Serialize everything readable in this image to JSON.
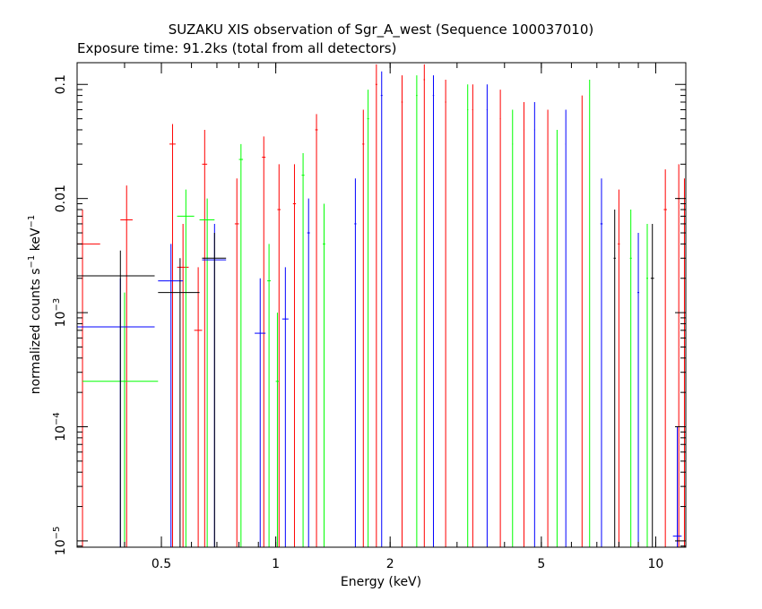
{
  "chart_data": {
    "type": "scatter",
    "title": "SUZAKU XIS observation of Sgr_A_west (Sequence 100037010)",
    "subtitle": "Exposure time: 91.2ks (total from all detectors)",
    "xlabel": "Energy (keV)",
    "ylabel_parts": {
      "main": "normalized counts s",
      "exp1": "−1",
      "mid": " keV",
      "exp2": "−1"
    },
    "x_scale": "log",
    "y_scale": "log",
    "xlim": [
      0.3,
      12.0
    ],
    "ylim": [
      8.8e-06,
      0.155
    ],
    "x_ticks": [
      {
        "value": 0.5,
        "label": "0.5"
      },
      {
        "value": 1,
        "label": "1"
      },
      {
        "value": 2,
        "label": "2"
      },
      {
        "value": 5,
        "label": "5"
      },
      {
        "value": 10,
        "label": "10"
      }
    ],
    "y_ticks": [
      {
        "value": 0.1,
        "label": "0.1",
        "mantissa": "",
        "exp": ""
      },
      {
        "value": 0.01,
        "label": "0.01",
        "mantissa": "",
        "exp": ""
      },
      {
        "value": 0.001,
        "label": "",
        "mantissa": "10",
        "exp": "−3"
      },
      {
        "value": 0.0001,
        "label": "",
        "mantissa": "10",
        "exp": "−4"
      },
      {
        "value": 1e-05,
        "label": "",
        "mantissa": "10",
        "exp": "−5"
      }
    ],
    "grid": false,
    "legend": "none",
    "series": [
      {
        "color": "#ff0000",
        "points": [
          {
            "x": 0.31,
            "xlo": 0.3,
            "xhi": 0.345,
            "y": 0.004,
            "ylo": 8.8e-06,
            "yhi": 0.008
          },
          {
            "x": 0.405,
            "xlo": 0.39,
            "xhi": 0.42,
            "y": 0.0065,
            "ylo": 8.8e-06,
            "yhi": 0.013
          },
          {
            "x": 0.535,
            "xlo": 0.525,
            "xhi": 0.545,
            "y": 0.03,
            "ylo": 8.8e-06,
            "yhi": 0.045
          },
          {
            "x": 0.57,
            "xlo": 0.55,
            "xhi": 0.59,
            "y": 0.0025,
            "ylo": 8.8e-06,
            "yhi": 0.006
          },
          {
            "x": 0.625,
            "xlo": 0.61,
            "xhi": 0.64,
            "y": 0.0007,
            "ylo": 8.8e-06,
            "yhi": 0.0025
          },
          {
            "x": 0.65,
            "xlo": 0.64,
            "xhi": 0.66,
            "y": 0.02,
            "ylo": 8.8e-06,
            "yhi": 0.04
          },
          {
            "x": 0.79,
            "xlo": 0.78,
            "xhi": 0.8,
            "y": 0.006,
            "ylo": 8.8e-06,
            "yhi": 0.015
          },
          {
            "x": 0.93,
            "xlo": 0.92,
            "xhi": 0.94,
            "y": 0.023,
            "ylo": 8.8e-06,
            "yhi": 0.035
          },
          {
            "x": 1.02,
            "xlo": 1.01,
            "xhi": 1.03,
            "y": 0.008,
            "ylo": 8.8e-06,
            "yhi": 0.02
          },
          {
            "x": 1.12,
            "xlo": 1.11,
            "xhi": 1.13,
            "y": 0.009,
            "ylo": 8.8e-06,
            "yhi": 0.02
          },
          {
            "x": 1.28,
            "xlo": 1.27,
            "xhi": 1.29,
            "y": 0.04,
            "ylo": 8.8e-06,
            "yhi": 0.055
          },
          {
            "x": 1.7,
            "xlo": 1.69,
            "xhi": 1.71,
            "y": 0.03,
            "ylo": 8.8e-06,
            "yhi": 0.06
          },
          {
            "x": 1.84,
            "xlo": 1.83,
            "xhi": 1.85,
            "y": 0.1,
            "ylo": 8.8e-06,
            "yhi": 0.15
          },
          {
            "x": 2.15,
            "xlo": 2.14,
            "xhi": 2.16,
            "y": 0.07,
            "ylo": 8.8e-06,
            "yhi": 0.12
          },
          {
            "x": 2.46,
            "xlo": 2.45,
            "xhi": 2.47,
            "y": 0.11,
            "ylo": 8.8e-06,
            "yhi": 0.15
          },
          {
            "x": 2.8,
            "xlo": 2.79,
            "xhi": 2.81,
            "y": 0.07,
            "ylo": 8.8e-06,
            "yhi": 0.11
          },
          {
            "x": 3.3,
            "xlo": 3.29,
            "xhi": 3.31,
            "y": 0.06,
            "ylo": 8.8e-06,
            "yhi": 0.1
          },
          {
            "x": 3.9,
            "xlo": 3.89,
            "xhi": 3.91,
            "y": 0.05,
            "ylo": 8.8e-06,
            "yhi": 0.09
          },
          {
            "x": 4.5,
            "xlo": 4.49,
            "xhi": 4.51,
            "y": 0.04,
            "ylo": 8.8e-06,
            "yhi": 0.07
          },
          {
            "x": 5.2,
            "xlo": 5.19,
            "xhi": 5.21,
            "y": 0.03,
            "ylo": 8.8e-06,
            "yhi": 0.06
          },
          {
            "x": 6.4,
            "xlo": 6.39,
            "xhi": 6.41,
            "y": 0.04,
            "ylo": 8.8e-06,
            "yhi": 0.08
          },
          {
            "x": 8.0,
            "xlo": 7.95,
            "xhi": 8.05,
            "y": 0.004,
            "ylo": 8.8e-06,
            "yhi": 0.012
          },
          {
            "x": 10.6,
            "xlo": 10.5,
            "xhi": 10.7,
            "y": 0.008,
            "ylo": 8.8e-06,
            "yhi": 0.018
          },
          {
            "x": 11.5,
            "xlo": 11.4,
            "xhi": 11.6,
            "y": 0.01,
            "ylo": 8.8e-06,
            "yhi": 0.02
          },
          {
            "x": 11.9,
            "xlo": 11.8,
            "xhi": 12.0,
            "y": 0.006,
            "ylo": 8.8e-06,
            "yhi": 0.015
          }
        ]
      },
      {
        "color": "#00ff00",
        "points": [
          {
            "x": 0.4,
            "xlo": 0.31,
            "xhi": 0.49,
            "y": 0.00025,
            "ylo": 8.8e-06,
            "yhi": 0.0015
          },
          {
            "x": 0.58,
            "xlo": 0.55,
            "xhi": 0.61,
            "y": 0.007,
            "ylo": 8.8e-06,
            "yhi": 0.012
          },
          {
            "x": 0.66,
            "xlo": 0.63,
            "xhi": 0.69,
            "y": 0.0065,
            "ylo": 8.8e-06,
            "yhi": 0.01
          },
          {
            "x": 0.81,
            "xlo": 0.8,
            "xhi": 0.82,
            "y": 0.022,
            "ylo": 8.8e-06,
            "yhi": 0.03
          },
          {
            "x": 0.96,
            "xlo": 0.95,
            "xhi": 0.97,
            "y": 0.0019,
            "ylo": 8.8e-06,
            "yhi": 0.004
          },
          {
            "x": 1.01,
            "xlo": 1.0,
            "xhi": 1.02,
            "y": 0.00025,
            "ylo": 8.8e-06,
            "yhi": 0.001
          },
          {
            "x": 1.18,
            "xlo": 1.17,
            "xhi": 1.19,
            "y": 0.016,
            "ylo": 8.8e-06,
            "yhi": 0.025
          },
          {
            "x": 1.34,
            "xlo": 1.33,
            "xhi": 1.35,
            "y": 0.004,
            "ylo": 8.8e-06,
            "yhi": 0.009
          },
          {
            "x": 1.75,
            "xlo": 1.74,
            "xhi": 1.76,
            "y": 0.05,
            "ylo": 8.8e-06,
            "yhi": 0.09
          },
          {
            "x": 2.35,
            "xlo": 2.34,
            "xhi": 2.36,
            "y": 0.08,
            "ylo": 8.8e-06,
            "yhi": 0.12
          },
          {
            "x": 3.2,
            "xlo": 3.19,
            "xhi": 3.21,
            "y": 0.06,
            "ylo": 8.8e-06,
            "yhi": 0.1
          },
          {
            "x": 4.2,
            "xlo": 4.19,
            "xhi": 4.21,
            "y": 0.03,
            "ylo": 8.8e-06,
            "yhi": 0.06
          },
          {
            "x": 5.5,
            "xlo": 5.49,
            "xhi": 5.51,
            "y": 0.02,
            "ylo": 8.8e-06,
            "yhi": 0.04
          },
          {
            "x": 6.7,
            "xlo": 6.69,
            "xhi": 6.71,
            "y": 0.08,
            "ylo": 8.8e-06,
            "yhi": 0.11
          },
          {
            "x": 8.6,
            "xlo": 8.55,
            "xhi": 8.65,
            "y": 0.003,
            "ylo": 8.8e-06,
            "yhi": 0.008
          },
          {
            "x": 9.5,
            "xlo": 9.45,
            "xhi": 9.55,
            "y": 0.002,
            "ylo": 8.8e-06,
            "yhi": 0.006
          }
        ]
      },
      {
        "color": "#0000ff",
        "points": [
          {
            "x": 0.39,
            "xlo": 0.3,
            "xhi": 0.48,
            "y": 0.00075,
            "ylo": 8.8e-06,
            "yhi": 0.002
          },
          {
            "x": 0.53,
            "xlo": 0.49,
            "xhi": 0.57,
            "y": 0.0019,
            "ylo": 8.8e-06,
            "yhi": 0.004
          },
          {
            "x": 0.69,
            "xlo": 0.64,
            "xhi": 0.74,
            "y": 0.0029,
            "ylo": 8.8e-06,
            "yhi": 0.006
          },
          {
            "x": 0.91,
            "xlo": 0.88,
            "xhi": 0.94,
            "y": 0.00066,
            "ylo": 8.8e-06,
            "yhi": 0.002
          },
          {
            "x": 1.06,
            "xlo": 1.04,
            "xhi": 1.08,
            "y": 0.00088,
            "ylo": 8.8e-06,
            "yhi": 0.0025
          },
          {
            "x": 1.22,
            "xlo": 1.21,
            "xhi": 1.23,
            "y": 0.005,
            "ylo": 8.8e-06,
            "yhi": 0.01
          },
          {
            "x": 1.62,
            "xlo": 1.61,
            "xhi": 1.63,
            "y": 0.006,
            "ylo": 8.8e-06,
            "yhi": 0.015
          },
          {
            "x": 1.9,
            "xlo": 1.89,
            "xhi": 1.91,
            "y": 0.08,
            "ylo": 8.8e-06,
            "yhi": 0.13
          },
          {
            "x": 2.6,
            "xlo": 2.59,
            "xhi": 2.61,
            "y": 0.08,
            "ylo": 8.8e-06,
            "yhi": 0.12
          },
          {
            "x": 3.6,
            "xlo": 3.59,
            "xhi": 3.61,
            "y": 0.06,
            "ylo": 8.8e-06,
            "yhi": 0.1
          },
          {
            "x": 4.8,
            "xlo": 4.79,
            "xhi": 4.81,
            "y": 0.04,
            "ylo": 8.8e-06,
            "yhi": 0.07
          },
          {
            "x": 5.8,
            "xlo": 5.79,
            "xhi": 5.81,
            "y": 0.03,
            "ylo": 8.8e-06,
            "yhi": 0.06
          },
          {
            "x": 7.2,
            "xlo": 7.15,
            "xhi": 7.25,
            "y": 0.006,
            "ylo": 8.8e-06,
            "yhi": 0.015
          },
          {
            "x": 9.0,
            "xlo": 8.95,
            "xhi": 9.05,
            "y": 0.0015,
            "ylo": 8.8e-06,
            "yhi": 0.005
          },
          {
            "x": 11.4,
            "xlo": 11.1,
            "xhi": 11.7,
            "y": 1.1e-05,
            "ylo": 8.8e-06,
            "yhi": 0.0001
          }
        ]
      },
      {
        "color": "#000000",
        "points": [
          {
            "x": 0.39,
            "xlo": 0.3,
            "xhi": 0.48,
            "y": 0.0021,
            "ylo": 8.8e-06,
            "yhi": 0.0035
          },
          {
            "x": 0.56,
            "xlo": 0.49,
            "xhi": 0.63,
            "y": 0.0015,
            "ylo": 8.8e-06,
            "yhi": 0.003
          },
          {
            "x": 0.69,
            "xlo": 0.64,
            "xhi": 0.74,
            "y": 0.003,
            "ylo": 8.8e-06,
            "yhi": 0.005
          },
          {
            "x": 7.8,
            "xlo": 7.75,
            "xhi": 7.85,
            "y": 0.003,
            "ylo": 8.8e-06,
            "yhi": 0.008
          },
          {
            "x": 9.8,
            "xlo": 9.7,
            "xhi": 9.9,
            "y": 0.002,
            "ylo": 8.8e-06,
            "yhi": 0.006
          }
        ]
      }
    ]
  }
}
